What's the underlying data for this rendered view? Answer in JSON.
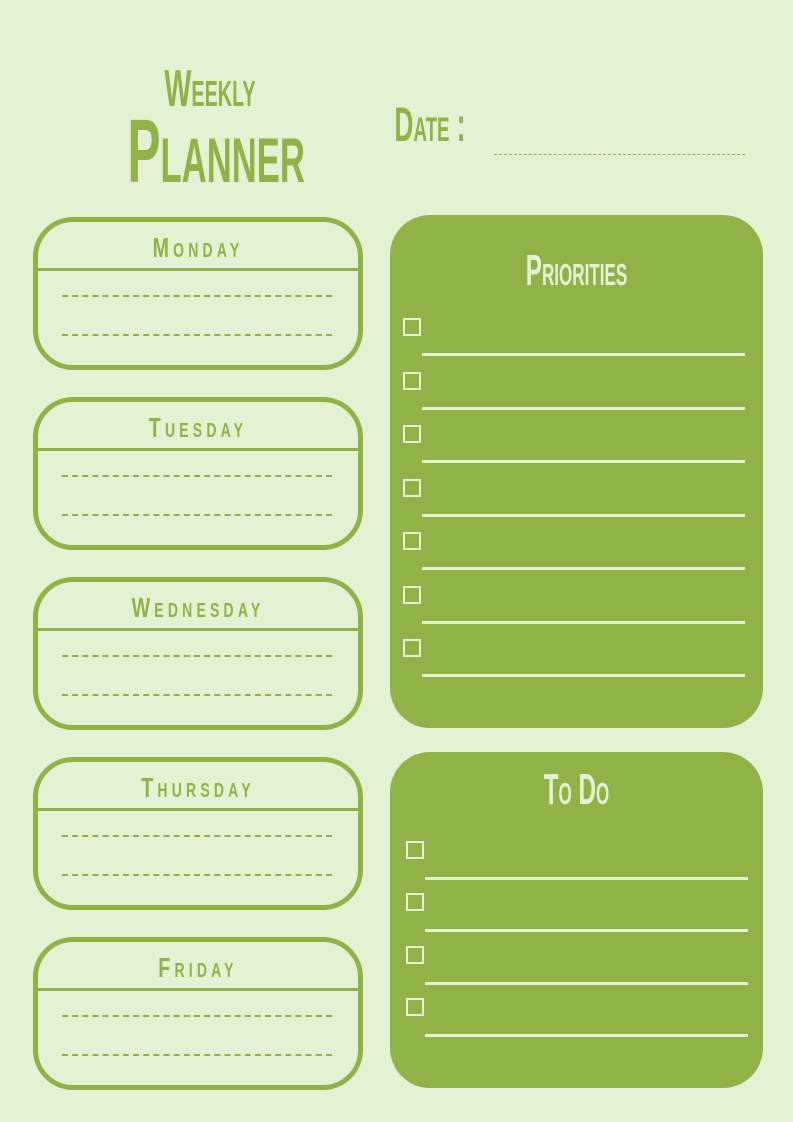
{
  "header": {
    "title_line1": "Weekly",
    "title_line2": "Planner",
    "date_label": "Date :"
  },
  "days": [
    {
      "label": "Monday"
    },
    {
      "label": "Tuesday"
    },
    {
      "label": "Wednesday"
    },
    {
      "label": "Thursday"
    },
    {
      "label": "Friday"
    }
  ],
  "priorities": {
    "title": "Priorities",
    "item_count": 7
  },
  "todo": {
    "title": "To Do",
    "item_count": 4
  },
  "colors": {
    "background": "#e4f2d4",
    "accent": "#8fb347"
  }
}
